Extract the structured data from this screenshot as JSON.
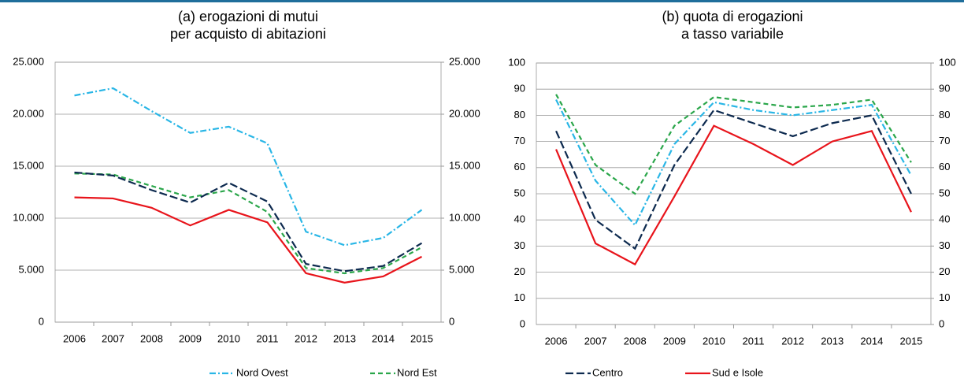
{
  "chart_data": [
    {
      "type": "line",
      "title": [
        "(a) erogazioni di mutui",
        "per acquisto di abitazioni"
      ],
      "categories": [
        "2006",
        "2007",
        "2008",
        "2009",
        "2010",
        "2011",
        "2012",
        "2013",
        "2014",
        "2015"
      ],
      "ylim": [
        0,
        25000
      ],
      "yticks": [
        0,
        {
          "value": 5000,
          "label": "5.000"
        },
        {
          "value": 10000,
          "label": "10.000"
        },
        {
          "value": 15000,
          "label": "15.000"
        },
        {
          "value": 20000,
          "label": "20.000"
        },
        {
          "value": 25000,
          "label": "25.000"
        }
      ],
      "y2lim": [
        0,
        25000
      ],
      "y2ticks": [
        0,
        {
          "value": 5000,
          "label": "5.000"
        },
        {
          "value": 10000,
          "label": "10.000"
        },
        {
          "value": 15000,
          "label": "15.000"
        },
        {
          "value": 20000,
          "label": "20.000"
        },
        {
          "value": 25000,
          "label": "25.000"
        }
      ],
      "grid": true,
      "series": [
        {
          "name": "Nord Ovest",
          "color": "#29b6e6",
          "values": [
            21800,
            22500,
            20300,
            18200,
            18800,
            17200,
            8700,
            7400,
            8100,
            10800
          ]
        },
        {
          "name": "Nord Est",
          "color": "#2aa64a",
          "values": [
            14300,
            14200,
            13100,
            12000,
            12700,
            10600,
            5200,
            4700,
            5200,
            7200
          ]
        },
        {
          "name": "Centro",
          "color": "#0d2a4f",
          "values": [
            14400,
            14100,
            12700,
            11500,
            13400,
            11600,
            5600,
            4900,
            5400,
            7600
          ]
        },
        {
          "name": "Sud e Isole",
          "color": "#e8141b",
          "values": [
            12000,
            11900,
            11000,
            9300,
            10800,
            9600,
            4700,
            3800,
            4400,
            6300
          ]
        }
      ]
    },
    {
      "type": "line",
      "title": [
        "(b) quota di erogazioni",
        "a tasso variabile"
      ],
      "categories": [
        "2006",
        "2007",
        "2008",
        "2009",
        "2010",
        "2011",
        "2012",
        "2013",
        "2014",
        "2015"
      ],
      "ylim": [
        0,
        100
      ],
      "yticks": [
        0,
        10,
        20,
        30,
        40,
        50,
        60,
        70,
        80,
        90,
        100
      ],
      "y2lim": [
        0,
        100
      ],
      "y2ticks": [
        0,
        10,
        20,
        30,
        40,
        50,
        60,
        70,
        80,
        90,
        100
      ],
      "grid": true,
      "series": [
        {
          "name": "Nord Ovest",
          "color": "#29b6e6",
          "values": [
            86,
            55,
            38,
            69,
            85,
            82,
            80,
            82,
            84,
            57
          ]
        },
        {
          "name": "Nord Est",
          "color": "#2aa64a",
          "values": [
            88,
            61,
            50,
            76,
            87,
            85,
            83,
            84,
            86,
            62
          ]
        },
        {
          "name": "Centro",
          "color": "#0d2a4f",
          "values": [
            74,
            40,
            29,
            61,
            82,
            77,
            72,
            77,
            80,
            50
          ]
        },
        {
          "name": "Sud e Isole",
          "color": "#e8141b",
          "values": [
            67,
            31,
            23,
            49,
            76,
            69,
            61,
            70,
            74,
            43
          ]
        }
      ]
    }
  ]
}
